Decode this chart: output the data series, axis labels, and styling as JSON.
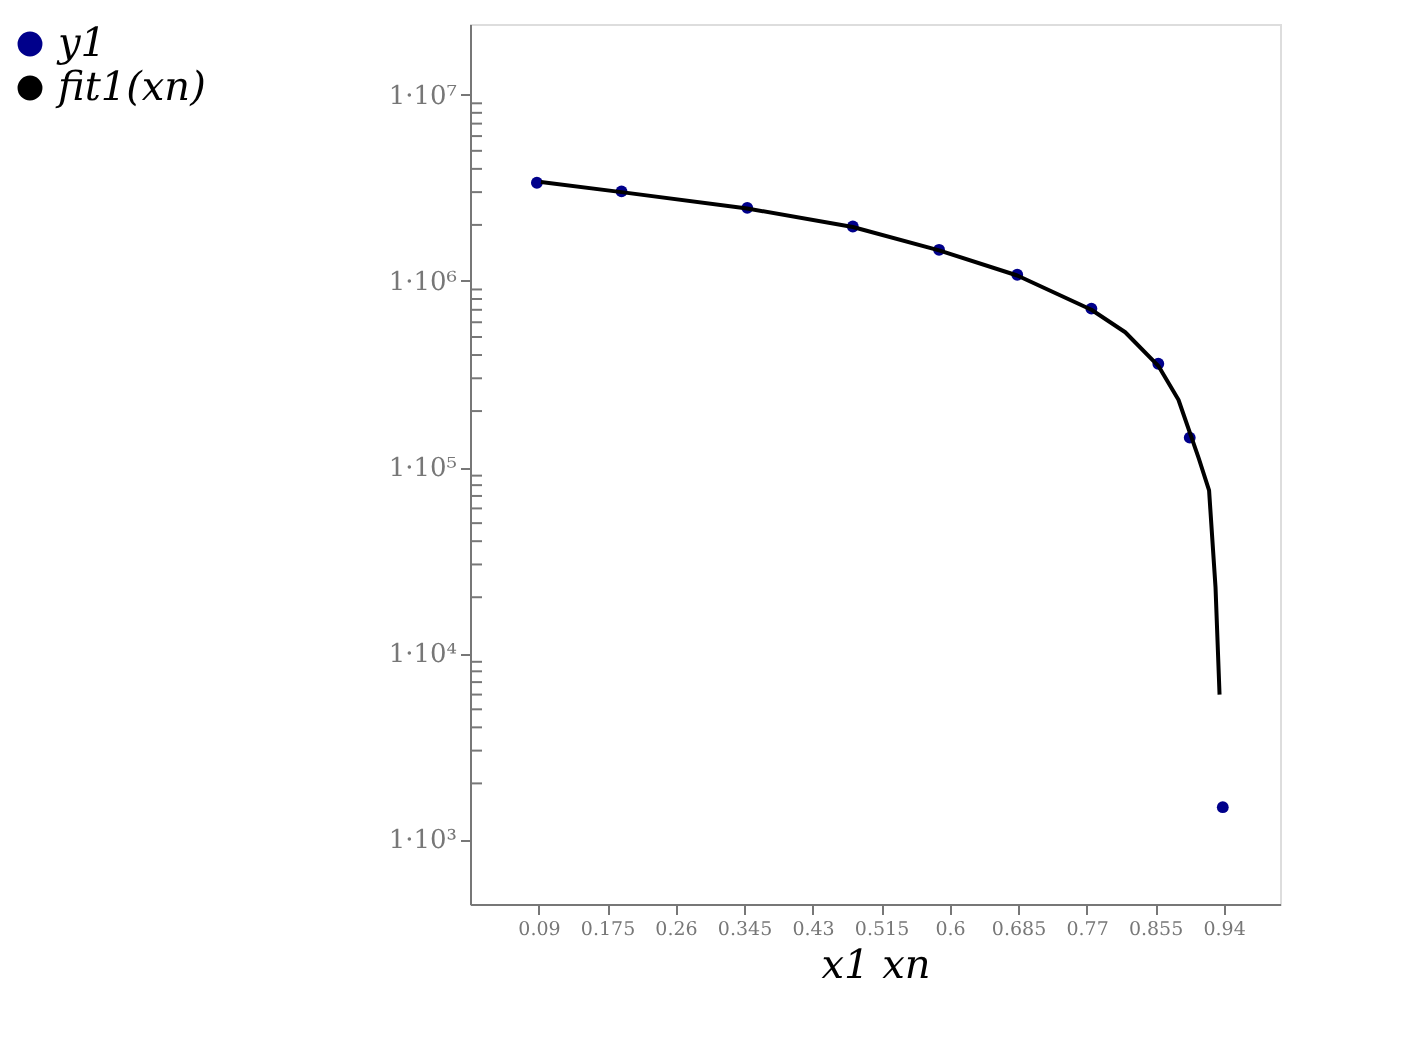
{
  "chart_data": {
    "type": "scatter",
    "xlabel": "x1 xn",
    "log": "y",
    "legend": "left",
    "grid": false,
    "xlim": [
      0.005,
      1.01
    ],
    "xticks": [
      0.09,
      0.175,
      0.26,
      0.345,
      0.43,
      0.515,
      0.6,
      0.685,
      0.77,
      0.855,
      0.94
    ],
    "ylim": [
      450,
      24000000
    ],
    "yticks": [
      {
        "value": 1000,
        "label": "1·10³"
      },
      {
        "value": 2000,
        "label": null
      },
      {
        "value": 3000,
        "label": null
      },
      {
        "value": 4000,
        "label": null
      },
      {
        "value": 5000,
        "label": null
      },
      {
        "value": 6000,
        "label": null
      },
      {
        "value": 7000,
        "label": null
      },
      {
        "value": 8000,
        "label": null
      },
      {
        "value": 9000,
        "label": null
      },
      {
        "value": 10000,
        "label": "1·10⁴"
      },
      {
        "value": 20000,
        "label": null
      },
      {
        "value": 30000,
        "label": null
      },
      {
        "value": 40000,
        "label": null
      },
      {
        "value": 50000,
        "label": null
      },
      {
        "value": 60000,
        "label": null
      },
      {
        "value": 70000,
        "label": null
      },
      {
        "value": 80000,
        "label": null
      },
      {
        "value": 90000,
        "label": null
      },
      {
        "value": 100000,
        "label": "1·10⁵"
      },
      {
        "value": 200000,
        "label": null
      },
      {
        "value": 300000,
        "label": null
      },
      {
        "value": 400000,
        "label": null
      },
      {
        "value": 500000,
        "label": null
      },
      {
        "value": 600000,
        "label": null
      },
      {
        "value": 700000,
        "label": null
      },
      {
        "value": 800000,
        "label": null
      },
      {
        "value": 900000,
        "label": null
      },
      {
        "value": 1000000,
        "label": "1·10⁶"
      },
      {
        "value": 2000000,
        "label": null
      },
      {
        "value": 3000000,
        "label": null
      },
      {
        "value": 4000000,
        "label": null
      },
      {
        "value": 5000000,
        "label": null
      },
      {
        "value": 6000000,
        "label": null
      },
      {
        "value": 7000000,
        "label": null
      },
      {
        "value": 8000000,
        "label": null
      },
      {
        "value": 9000000,
        "label": null
      },
      {
        "value": 10000000,
        "label": "1·10⁷"
      }
    ],
    "series": [
      {
        "name": "y1",
        "marker": "circle",
        "color": "#00008b",
        "x": [
          0.088,
          0.193,
          0.349,
          0.48,
          0.587,
          0.684,
          0.776,
          0.859,
          0.898,
          0.939
        ],
        "values": [
          3370000,
          3030000,
          2470000,
          1960000,
          1470000,
          1080000,
          710000,
          359000,
          144000,
          1490
        ]
      },
      {
        "name": "fit1(xn)",
        "type": "line",
        "color": "#000000",
        "line_style": "solid",
        "x": [
          0.093,
          0.193,
          0.349,
          0.48,
          0.587,
          0.684,
          0.776,
          0.818,
          0.859,
          0.884,
          0.909,
          0.922,
          0.93,
          0.935
        ],
        "values": [
          3400000,
          3000000,
          2450000,
          1950000,
          1460000,
          1070000,
          700000,
          530000,
          350000,
          230000,
          112000,
          75000,
          22600,
          6000
        ]
      }
    ]
  }
}
